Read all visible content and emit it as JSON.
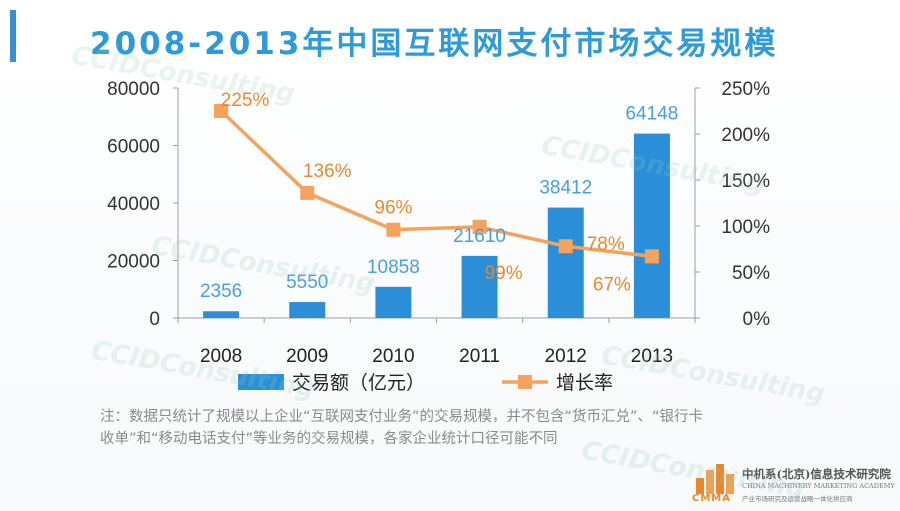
{
  "chart_data": {
    "type": "bar+line",
    "title": "2008-2013年中国互联网支付市场交易规模",
    "categories": [
      "2008",
      "2009",
      "2010",
      "2011",
      "2012",
      "2013"
    ],
    "series": [
      {
        "name": "交易额（亿元）",
        "type": "bar",
        "axis": "left",
        "values": [
          2356,
          5550,
          10858,
          21610,
          38412,
          64148
        ],
        "labels": [
          "2356",
          "5550",
          "10858",
          "21610",
          "38412",
          "64148"
        ],
        "color": "#2a8fd8"
      },
      {
        "name": "增长率",
        "type": "line",
        "axis": "right",
        "values": [
          225,
          136,
          96,
          99,
          78,
          67
        ],
        "labels": [
          "225%",
          "136%",
          "96%",
          "99%",
          "78%",
          "67%"
        ],
        "color": "#f5a25d",
        "label_color": "#e8892e"
      }
    ],
    "y_left": {
      "ylim": [
        0,
        80000
      ],
      "ticks": [
        "0",
        "20000",
        "40000",
        "60000",
        "80000"
      ]
    },
    "y_right": {
      "ylim": [
        0,
        250
      ],
      "ticks": [
        "0%",
        "50%",
        "100%",
        "150%",
        "200%",
        "250%"
      ]
    },
    "grid": false,
    "legend_position": "bottom"
  },
  "note": {
    "line1": "注：数据只统计了规模以上企业“互联网支付业务”的交易规模，并不包含“货币汇兑”、“银行卡",
    "line2": "收单”和“移动电话支付”等业务的交易规模，各家企业统计口径可能不同"
  },
  "logo": {
    "abbr": "CMMA",
    "name_cn": "中机系(北京)信息技术研究院",
    "name_en": "CHINA MACHINERY MARKETING ACADEMY",
    "slogan": "产业市场研究及运营战略一体化供应商"
  },
  "watermark": {
    "text": "CCIDConsulting"
  }
}
